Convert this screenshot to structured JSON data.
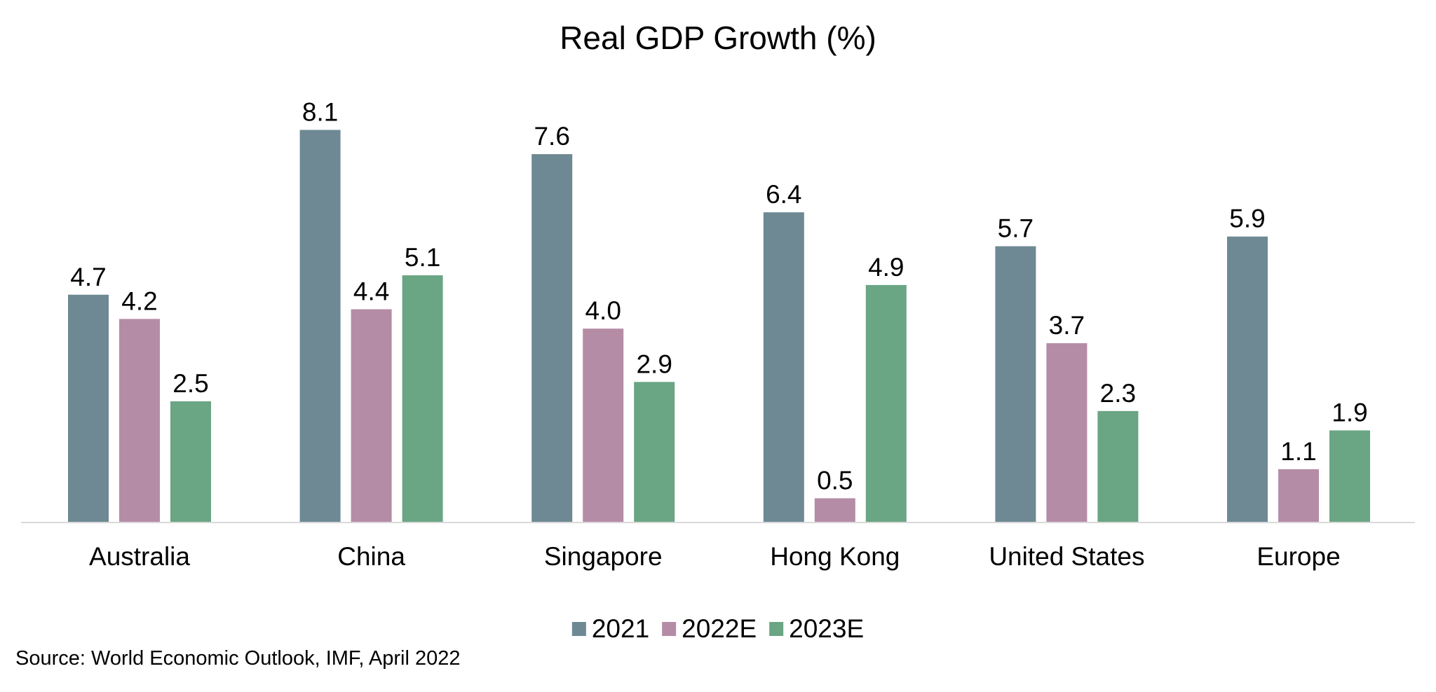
{
  "chart_data": {
    "type": "bar",
    "title": "Real GDP Growth (%)",
    "xlabel": "",
    "ylabel": "",
    "ylim": [
      0,
      8.5
    ],
    "grid": false,
    "legend": "bottom-center",
    "categories": [
      "Australia",
      "China",
      "Singapore",
      "Hong Kong",
      "United States",
      "Europe"
    ],
    "series": [
      {
        "name": "2021",
        "color": "#6e8994",
        "values": [
          4.7,
          8.1,
          7.6,
          6.4,
          5.7,
          5.9
        ]
      },
      {
        "name": "2022E",
        "color": "#b58ca6",
        "values": [
          4.2,
          4.4,
          4.0,
          0.5,
          3.7,
          1.1
        ]
      },
      {
        "name": "2023E",
        "color": "#6aa584",
        "values": [
          2.5,
          5.1,
          2.9,
          4.9,
          2.3,
          1.9
        ]
      }
    ],
    "data_labels": true,
    "value_format_decimals": 1
  },
  "source": "Source: World Economic Outlook, IMF,  April 2022"
}
